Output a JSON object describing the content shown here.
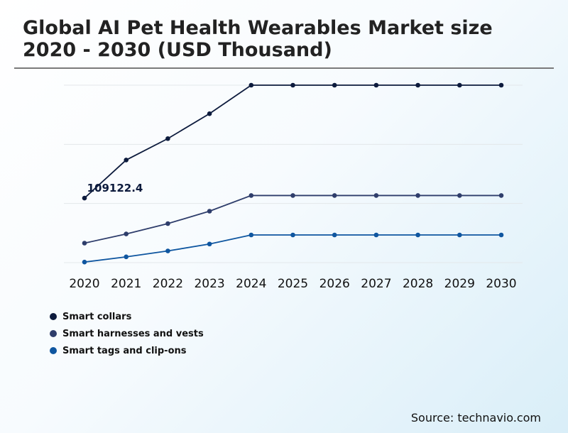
{
  "title": "Global AI Pet Health Wearables Market size 2020 - 2030 (USD Thousand)",
  "source": "Source: technavio.com",
  "chart_data": {
    "type": "line",
    "title": "Global AI Pet Health Wearables Market size 2020 - 2030 (USD Thousand)",
    "xlabel": "",
    "ylabel": "",
    "x": [
      "2020",
      "2021",
      "2022",
      "2023",
      "2024",
      "2025",
      "2026",
      "2027",
      "2028",
      "2029",
      "2030"
    ],
    "ylim": [
      0,
      300000
    ],
    "grid": true,
    "legend_position": "bottom-left",
    "annotations": [
      {
        "series": "Smart collars",
        "x": "2020",
        "label": "109122.4"
      }
    ],
    "series": [
      {
        "name": "Smart collars",
        "color": "#0d1b3d",
        "values": [
          109122.4,
          173500,
          209700,
          251800,
          300000,
          300000,
          300000,
          300000,
          300000,
          300000,
          300000
        ]
      },
      {
        "name": "Smart harnesses and vests",
        "color": "#2e3d6b",
        "values": [
          33000,
          48500,
          66000,
          87000,
          113500,
          113500,
          113500,
          113500,
          113500,
          113500,
          113500
        ]
      },
      {
        "name": "Smart tags and clip-ons",
        "color": "#0f56a0",
        "values": [
          1000,
          9800,
          19800,
          31500,
          46800,
          46800,
          46800,
          46800,
          46800,
          46800,
          46800
        ]
      }
    ]
  }
}
